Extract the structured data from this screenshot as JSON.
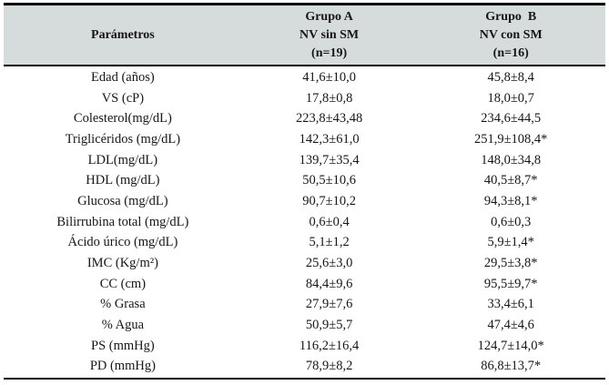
{
  "colors": {
    "header_bg": "#d6dbdc",
    "rule": "#000000",
    "text": "#161616",
    "page_bg": "#ffffff"
  },
  "table": {
    "columns": {
      "param_header": "Parámetros",
      "group_a": {
        "line1": "Grupo A",
        "line2": "NV sin SM",
        "line3": "(n=19)"
      },
      "group_b": {
        "line1": "Grupo  B",
        "line2": "NV con SM",
        "line3": "(n=16)"
      }
    },
    "rows": [
      {
        "param": "Edad (años)",
        "group_a": "41,6±10,0",
        "group_b": "45,8±8,4"
      },
      {
        "param": "VS (cP)",
        "group_a": "17,8±0,8",
        "group_b": "18,0±0,7"
      },
      {
        "param": "Colesterol(mg/dL)",
        "group_a": "223,8±43,48",
        "group_b": "234,6±44,5"
      },
      {
        "param": "Triglicéridos (mg/dL)",
        "group_a": "142,3±61,0",
        "group_b": "251,9±108,4*"
      },
      {
        "param": "LDL(mg/dL)",
        "group_a": "139,7±35,4",
        "group_b": "148,0±34,8"
      },
      {
        "param": "HDL (mg/dL)",
        "group_a": "50,5±10,6",
        "group_b": "40,5±8,7*"
      },
      {
        "param": "Glucosa (mg/dL)",
        "group_a": "90,7±10,2",
        "group_b": "94,3±8,1*"
      },
      {
        "param": "Bilirrubina total (mg/dL)",
        "group_a": "0,6±0,4",
        "group_b": "0,6±0,3"
      },
      {
        "param": "Ácido úrico (mg/dL)",
        "group_a": "5,1±1,2",
        "group_b": "5,9±1,4*"
      },
      {
        "param": "IMC (Kg/m²)",
        "group_a": "25,6±3,0",
        "group_b": "29,5±3,8*"
      },
      {
        "param": "CC (cm)",
        "group_a": "84,4±9,6",
        "group_b": "95,5±9,7*"
      },
      {
        "param": "% Grasa",
        "group_a": "27,9±7,6",
        "group_b": "33,4±6,1"
      },
      {
        "param": "% Agua",
        "group_a": "50,9±5,7",
        "group_b": "47,4±4,6"
      },
      {
        "param": "PS (mmHg)",
        "group_a": "116,2±16,4",
        "group_b": "124,7±14,0*"
      },
      {
        "param": "PD (mmHg)",
        "group_a": "78,9±8,2",
        "group_b": "86,8±13,7*"
      }
    ]
  }
}
